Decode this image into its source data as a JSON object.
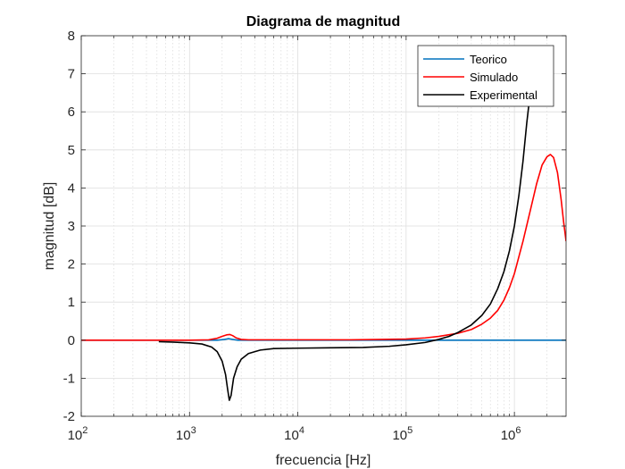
{
  "chart_data": {
    "type": "line",
    "title": "Diagrama de magnitud",
    "xlabel": "frecuencia [Hz]",
    "ylabel": "magnitud [dB]",
    "xscale": "log",
    "xlim": [
      100,
      3000000
    ],
    "ylim": [
      -2,
      8
    ],
    "x_ticks": [
      100,
      1000,
      10000,
      100000,
      1000000
    ],
    "x_tick_labels": [
      {
        "base": "10",
        "exp": "2"
      },
      {
        "base": "10",
        "exp": "3"
      },
      {
        "base": "10",
        "exp": "4"
      },
      {
        "base": "10",
        "exp": "5"
      },
      {
        "base": "10",
        "exp": "6"
      }
    ],
    "y_ticks": [
      -2,
      -1,
      0,
      1,
      2,
      3,
      4,
      5,
      6,
      7,
      8
    ],
    "grid": true,
    "minor_grid_x": true,
    "legend_position": "top-right",
    "series": [
      {
        "name": "Teorico",
        "color": "#0072BD",
        "points": [
          [
            100,
            0
          ],
          [
            1000,
            0
          ],
          [
            1800,
            0
          ],
          [
            2100,
            0.02
          ],
          [
            2300,
            0.04
          ],
          [
            2500,
            0.02
          ],
          [
            2800,
            0
          ],
          [
            10000,
            0
          ],
          [
            100000,
            0
          ],
          [
            1000000,
            0
          ],
          [
            3000000,
            0
          ]
        ]
      },
      {
        "name": "Simulado",
        "color": "#FF0000",
        "points": [
          [
            100,
            0
          ],
          [
            1000,
            0
          ],
          [
            1500,
            0.01
          ],
          [
            1800,
            0.05
          ],
          [
            2000,
            0.1
          ],
          [
            2200,
            0.14
          ],
          [
            2350,
            0.15
          ],
          [
            2500,
            0.12
          ],
          [
            2700,
            0.06
          ],
          [
            3000,
            0.02
          ],
          [
            3500,
            0.01
          ],
          [
            5000,
            0.01
          ],
          [
            10000,
            0.01
          ],
          [
            30000,
            0.01
          ],
          [
            60000,
            0.02
          ],
          [
            100000,
            0.03
          ],
          [
            150000,
            0.06
          ],
          [
            200000,
            0.1
          ],
          [
            300000,
            0.18
          ],
          [
            400000,
            0.28
          ],
          [
            500000,
            0.42
          ],
          [
            600000,
            0.58
          ],
          [
            700000,
            0.78
          ],
          [
            800000,
            1.05
          ],
          [
            900000,
            1.38
          ],
          [
            1000000,
            1.75
          ],
          [
            1200000,
            2.6
          ],
          [
            1400000,
            3.4
          ],
          [
            1600000,
            4.1
          ],
          [
            1800000,
            4.6
          ],
          [
            2000000,
            4.82
          ],
          [
            2150000,
            4.88
          ],
          [
            2300000,
            4.8
          ],
          [
            2500000,
            4.4
          ],
          [
            2700000,
            3.7
          ],
          [
            2850000,
            3.1
          ],
          [
            3000000,
            2.6
          ]
        ]
      },
      {
        "name": "Experimental",
        "color": "#000000",
        "points": [
          [
            520,
            -0.04
          ],
          [
            700,
            -0.05
          ],
          [
            1000,
            -0.07
          ],
          [
            1300,
            -0.1
          ],
          [
            1600,
            -0.18
          ],
          [
            1800,
            -0.3
          ],
          [
            2000,
            -0.55
          ],
          [
            2150,
            -0.9
          ],
          [
            2250,
            -1.3
          ],
          [
            2330,
            -1.58
          ],
          [
            2420,
            -1.45
          ],
          [
            2550,
            -1.0
          ],
          [
            2750,
            -0.7
          ],
          [
            3000,
            -0.5
          ],
          [
            3500,
            -0.35
          ],
          [
            4500,
            -0.26
          ],
          [
            6000,
            -0.22
          ],
          [
            10000,
            -0.21
          ],
          [
            20000,
            -0.2
          ],
          [
            40000,
            -0.19
          ],
          [
            70000,
            -0.16
          ],
          [
            100000,
            -0.12
          ],
          [
            150000,
            -0.06
          ],
          [
            200000,
            0.02
          ],
          [
            250000,
            0.1
          ],
          [
            300000,
            0.2
          ],
          [
            400000,
            0.4
          ],
          [
            500000,
            0.65
          ],
          [
            600000,
            0.95
          ],
          [
            700000,
            1.35
          ],
          [
            800000,
            1.8
          ],
          [
            900000,
            2.35
          ],
          [
            1000000,
            3.0
          ],
          [
            1100000,
            3.8
          ],
          [
            1200000,
            4.7
          ],
          [
            1300000,
            5.7
          ],
          [
            1400000,
            6.5
          ],
          [
            1500000,
            7.2
          ],
          [
            1550000,
            7.6
          ]
        ]
      }
    ]
  }
}
